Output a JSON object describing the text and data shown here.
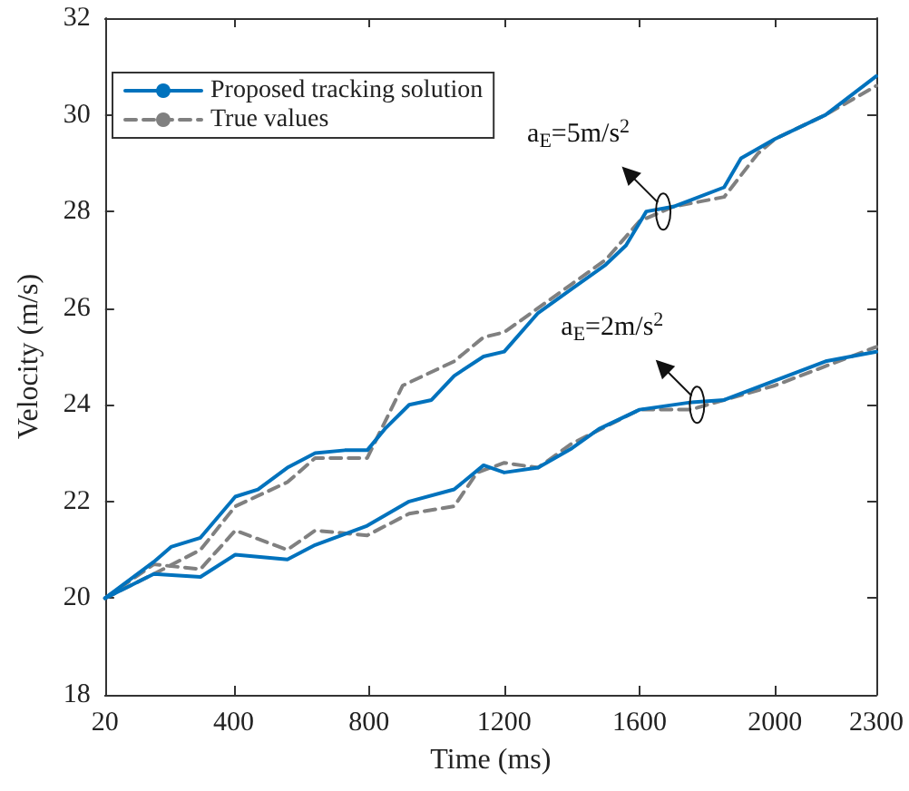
{
  "chart_data": {
    "type": "line",
    "xlabel": "Time (ms)",
    "ylabel": "Velocity (m/s)",
    "xlim": [
      20,
      2300
    ],
    "xticks": [
      20,
      400,
      800,
      1200,
      1600,
      2000,
      2300
    ],
    "ylim": [
      18,
      32
    ],
    "yticks": [
      18,
      20,
      22,
      24,
      26,
      28,
      30,
      32
    ],
    "grid": false,
    "legend": "top left",
    "marker": "none",
    "series": [
      {
        "name": "Proposed tracking solution",
        "color": "#0072bd",
        "line_style": "solid",
        "x": [
          20,
          164,
          215,
          302,
          405,
          472,
          559,
          641,
          729,
          795,
          847,
          919,
          985,
          1052,
          1139,
          1200,
          1300,
          1400,
          1500,
          1560,
          1620,
          1700,
          1850,
          1900,
          2000,
          2150,
          2300
        ],
        "values": [
          20.0,
          20.75,
          21.06,
          21.25,
          22.1,
          22.25,
          22.7,
          23.0,
          23.06,
          23.06,
          23.5,
          24.0,
          24.1,
          24.6,
          25.0,
          25.1,
          25.9,
          26.4,
          26.9,
          27.3,
          28.0,
          28.1,
          28.5,
          29.1,
          29.5,
          30.0,
          30.8
        ]
      },
      {
        "name": "True values",
        "color": "#808080",
        "line_style": "dashed",
        "x": [
          20,
          164,
          302,
          405,
          559,
          641,
          795,
          900,
          1052,
          1139,
          1200,
          1300,
          1400,
          1500,
          1600,
          1700,
          1850,
          1950,
          2000,
          2150,
          2300
        ],
        "values": [
          20.0,
          20.5,
          21.0,
          21.9,
          22.4,
          22.9,
          22.9,
          24.4,
          24.9,
          25.4,
          25.5,
          26.0,
          26.5,
          27.0,
          27.8,
          28.1,
          28.3,
          29.2,
          29.5,
          30.0,
          30.6
        ]
      },
      {
        "color": "#0072bd",
        "line_style": "solid",
        "x": [
          20,
          164,
          302,
          405,
          559,
          641,
          795,
          919,
          1052,
          1139,
          1200,
          1300,
          1400,
          1480,
          1600,
          1750,
          1850,
          2000,
          2150,
          2300
        ],
        "values": [
          20.0,
          20.5,
          20.44,
          20.9,
          20.8,
          21.1,
          21.5,
          22.0,
          22.25,
          22.75,
          22.6,
          22.7,
          23.1,
          23.5,
          23.9,
          24.05,
          24.1,
          24.5,
          24.9,
          25.1
        ]
      },
      {
        "color": "#808080",
        "line_style": "dashed",
        "x": [
          20,
          164,
          302,
          405,
          559,
          641,
          795,
          919,
          1052,
          1120,
          1200,
          1300,
          1400,
          1600,
          1750,
          2000,
          2150,
          2300
        ],
        "values": [
          20.0,
          20.7,
          20.6,
          21.4,
          21.0,
          21.4,
          21.3,
          21.75,
          21.9,
          22.6,
          22.8,
          22.7,
          23.2,
          23.9,
          23.9,
          24.4,
          24.8,
          25.2
        ]
      }
    ],
    "annotations": [
      {
        "text": "a$_{E}$=5m/s$^{2}$",
        "x": 1670,
        "y": 28.0
      },
      {
        "text": "a$_{E}$=2m/s$^{2}$",
        "x": 1770,
        "y": 24.0
      }
    ]
  }
}
